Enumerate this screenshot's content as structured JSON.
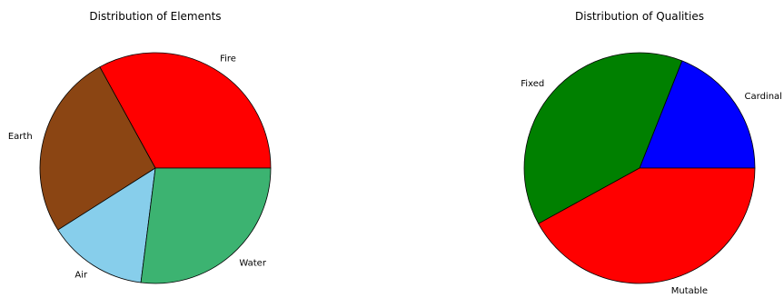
{
  "chart_data": [
    {
      "type": "pie",
      "title": "Distribution of Elements",
      "start_angle_deg": 0,
      "direction": "counterclockwise",
      "slices": [
        {
          "label": "Fire",
          "value": 33,
          "color": "#ff0000"
        },
        {
          "label": "Earth",
          "value": 26,
          "color": "#8b4513"
        },
        {
          "label": "Air",
          "value": 14,
          "color": "#87ceeb"
        },
        {
          "label": "Water",
          "value": 27,
          "color": "#3cb371"
        }
      ]
    },
    {
      "type": "pie",
      "title": "Distribution of Qualities",
      "start_angle_deg": 0,
      "direction": "counterclockwise",
      "slices": [
        {
          "label": "Cardinal",
          "value": 19,
          "color": "#0000ff"
        },
        {
          "label": "Fixed",
          "value": 39,
          "color": "#008000"
        },
        {
          "label": "Mutable",
          "value": 42,
          "color": "#ff0000"
        }
      ]
    }
  ]
}
